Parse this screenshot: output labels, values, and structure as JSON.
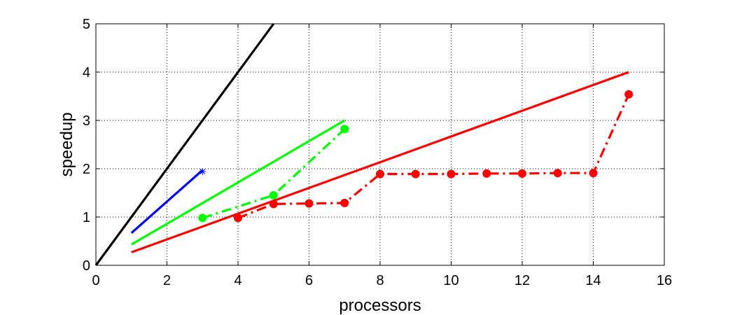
{
  "chart_data": {
    "type": "line",
    "xlabel": "processors",
    "ylabel": "speedup",
    "xlim": [
      0,
      16
    ],
    "ylim": [
      0,
      5
    ],
    "xticks": [
      0,
      2,
      4,
      6,
      8,
      10,
      12,
      14,
      16
    ],
    "yticks": [
      0,
      1,
      2,
      3,
      4,
      5
    ],
    "grid": true,
    "legend": "none",
    "series": [
      {
        "color": "#000000",
        "style": "solid",
        "marker": "none",
        "x": [
          0,
          5
        ],
        "y": [
          0,
          5
        ]
      },
      {
        "color": "#0000ff",
        "style": "solid",
        "marker": "none",
        "x": [
          1,
          3
        ],
        "y": [
          0.67,
          1.97
        ]
      },
      {
        "color": "#0000ff",
        "style": "none",
        "marker": "asterisk",
        "x": [
          3
        ],
        "y": [
          1.94
        ]
      },
      {
        "color": "#00ff00",
        "style": "solid",
        "marker": "none",
        "x": [
          1,
          7
        ],
        "y": [
          0.43,
          3.0
        ]
      },
      {
        "color": "#00ff00",
        "style": "dashdot",
        "marker": "dot",
        "x": [
          3,
          5,
          7
        ],
        "y": [
          0.98,
          1.45,
          2.82
        ]
      },
      {
        "color": "#ff0000",
        "style": "solid",
        "marker": "none",
        "x": [
          1,
          15
        ],
        "y": [
          0.27,
          4.0
        ]
      },
      {
        "color": "#ff0000",
        "style": "dashdot",
        "marker": "dot",
        "x": [
          4,
          5,
          6,
          7,
          8,
          9,
          10,
          11,
          12,
          13,
          14,
          15
        ],
        "y": [
          0.98,
          1.27,
          1.28,
          1.29,
          1.89,
          1.89,
          1.89,
          1.9,
          1.9,
          1.91,
          1.91,
          3.54
        ]
      }
    ]
  }
}
